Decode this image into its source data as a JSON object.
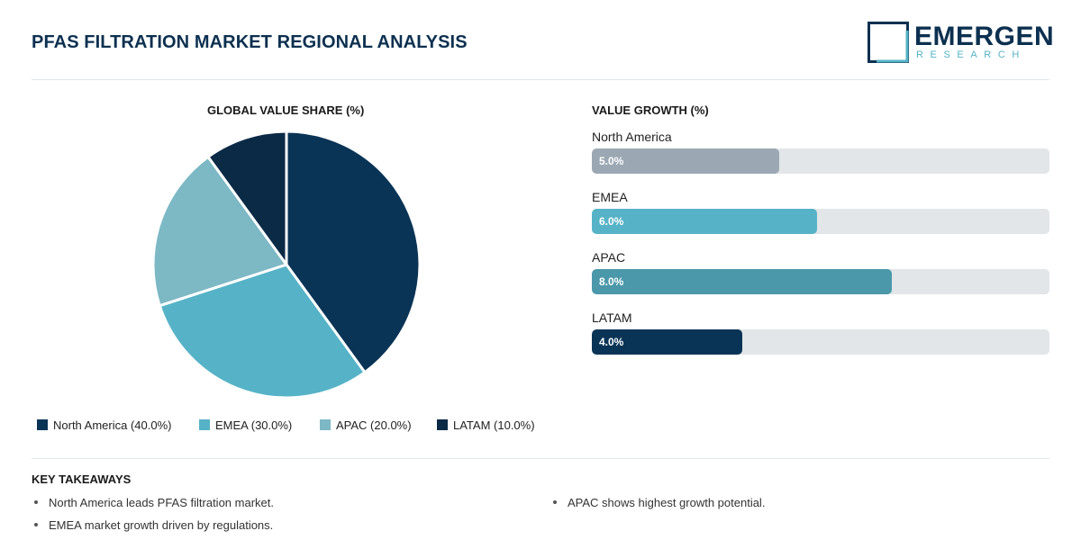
{
  "header": {
    "title": "PFAS FILTRATION MARKET REGIONAL ANALYSIS",
    "logo_word": "EMERGEN",
    "logo_sub": "RESEARCH"
  },
  "colors": {
    "navy": "#0a3456",
    "teal": "#56b3c7",
    "light_teal": "#7db8c5",
    "dark_navy": "#0b2a46",
    "gray_fill": "#9ba8b3",
    "mid_teal": "#4a98a9",
    "track": "#e2e6e9"
  },
  "chart_data": [
    {
      "type": "pie",
      "title": "GLOBAL VALUE SHARE (%)",
      "categories": [
        "North America",
        "EMEA",
        "APAC",
        "LATAM"
      ],
      "values": [
        40.0,
        30.0,
        20.0,
        10.0
      ],
      "colors": [
        "#0a3456",
        "#56b3c7",
        "#7db8c5",
        "#0b2a46"
      ],
      "legend": [
        {
          "label": "North America (40.0%)",
          "color": "#0a3456"
        },
        {
          "label": "EMEA (30.0%)",
          "color": "#56b3c7"
        },
        {
          "label": "APAC (20.0%)",
          "color": "#7db8c5"
        },
        {
          "label": "LATAM (10.0%)",
          "color": "#0b2a46"
        }
      ],
      "legend_position": "bottom"
    },
    {
      "type": "bar",
      "orientation": "horizontal",
      "title": "VALUE GROWTH (%)",
      "categories": [
        "North America",
        "EMEA",
        "APAC",
        "LATAM"
      ],
      "values": [
        5.0,
        6.0,
        8.0,
        4.0
      ],
      "value_labels": [
        "5.0%",
        "6.0%",
        "8.0%",
        "4.0%"
      ],
      "colors": [
        "#9ba8b3",
        "#56b3c7",
        "#4a98a9",
        "#0a3456"
      ],
      "xlim": [
        0,
        12.2
      ]
    }
  ],
  "takeaways": {
    "title": "KEY TAKEAWAYS",
    "items": [
      "North America leads PFAS filtration market.",
      "EMEA market growth driven by regulations.",
      "APAC shows highest growth potential."
    ]
  }
}
